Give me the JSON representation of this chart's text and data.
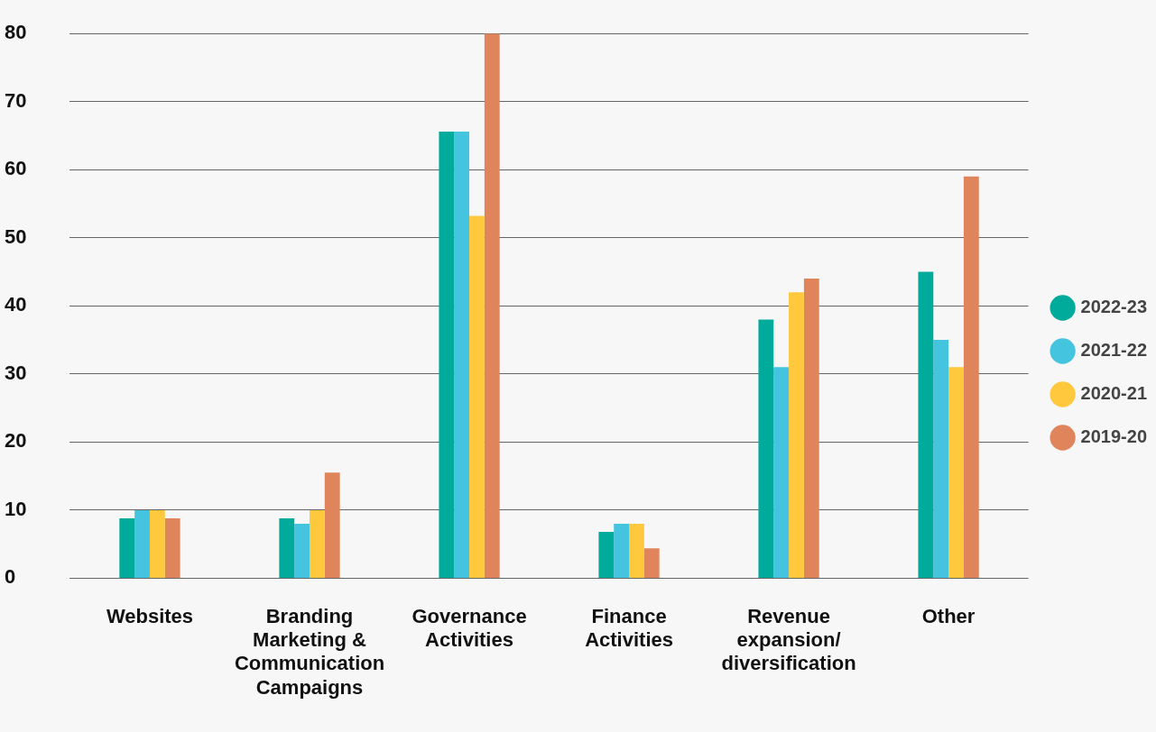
{
  "chart_data": {
    "type": "bar",
    "categories": [
      "Websites",
      "Branding Marketing & Communication Campaigns",
      "Governance Activities",
      "Finance Activities",
      "Revenue expansion/ diversification",
      "Other"
    ],
    "series": [
      {
        "name": "2022-23",
        "color": "#00ab9b",
        "values": [
          8.8,
          8.8,
          65.6,
          6.8,
          38,
          45
        ]
      },
      {
        "name": "2021-22",
        "color": "#45c4e0",
        "values": [
          10,
          8,
          65.6,
          8,
          31,
          35
        ]
      },
      {
        "name": "2020-21",
        "color": "#ffc83d",
        "values": [
          10,
          10,
          53.2,
          8,
          42,
          31
        ]
      },
      {
        "name": "2019-20",
        "color": "#e0845c",
        "values": [
          8.8,
          15.5,
          80,
          4.4,
          44,
          59
        ]
      }
    ],
    "ylim": [
      0,
      80
    ],
    "yticks": [
      0,
      10,
      20,
      30,
      40,
      50,
      60,
      70,
      80
    ],
    "grid": "y",
    "legend": "right"
  }
}
